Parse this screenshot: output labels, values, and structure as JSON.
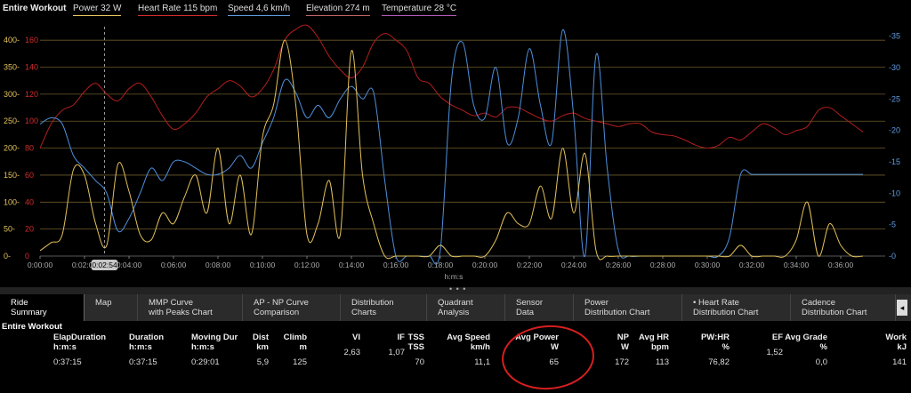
{
  "legend": {
    "title": "Entire Workout",
    "items": [
      {
        "label": "Power  32 W",
        "color": "#e8c760"
      },
      {
        "label": "Heart Rate  115 bpm",
        "color": "#d22c2c"
      },
      {
        "label": "Speed  4,6 km/h",
        "color": "#5f9be0"
      },
      {
        "label": "Elevation  274 m",
        "color": "#c06464"
      },
      {
        "label": "Temperature  28 °C",
        "color": "#b35ab8"
      }
    ]
  },
  "chart_data": {
    "type": "line",
    "xlabel": "h:m:s",
    "cursor_label": "0:02:54",
    "x_ticks": [
      "0:00:00",
      "0:02:00",
      "0:04:00",
      "0:06:00",
      "0:08:00",
      "0:10:00",
      "0:12:00",
      "0:14:00",
      "0:16:00",
      "0:18:00",
      "0:20:00",
      "0:22:00",
      "0:24:00",
      "0:26:00",
      "0:28:00",
      "0:30:00",
      "0:32:00",
      "0:34:00",
      "0:36:00"
    ],
    "y_power_ticks": [
      "0-",
      "50-",
      "100-",
      "150-",
      "200-",
      "250-",
      "300-",
      "350-",
      "400-"
    ],
    "y_hr_ticks": [
      "0",
      "20",
      "40",
      "60",
      "80",
      "100",
      "120",
      "140",
      "160"
    ],
    "y_speed_ticks": [
      "-0",
      "-5",
      "-10",
      "-15",
      "-20",
      "-25",
      "-30",
      "-35"
    ],
    "x_unit": "minutes",
    "series": [
      {
        "name": "Heart Rate",
        "axis": "hr",
        "color": "#b41e1e",
        "x": [
          0,
          0.5,
          1,
          1.5,
          2,
          2.5,
          3,
          3.5,
          4,
          4.5,
          5,
          5.5,
          6,
          6.5,
          7,
          7.5,
          8,
          8.5,
          9,
          9.5,
          10,
          10.5,
          11,
          11.5,
          12,
          12.5,
          13,
          13.5,
          14,
          14.5,
          15,
          15.5,
          16,
          16.5,
          17,
          17.5,
          18,
          18.5,
          19,
          19.5,
          20,
          20.5,
          21,
          21.5,
          22,
          22.5,
          23,
          23.5,
          24,
          24.5,
          25,
          25.5,
          26,
          26.5,
          27,
          27.5,
          28,
          28.5,
          29,
          29.5,
          30,
          30.5,
          31,
          31.5,
          32,
          32.5,
          33,
          33.5,
          34,
          34.5,
          35,
          35.5,
          36,
          36.5,
          37
        ],
        "y": [
          80,
          98,
          108,
          112,
          122,
          128,
          120,
          115,
          124,
          128,
          118,
          104,
          94,
          98,
          106,
          118,
          124,
          130,
          126,
          118,
          124,
          138,
          160,
          168,
          171,
          162,
          148,
          138,
          132,
          140,
          158,
          165,
          160,
          152,
          132,
          128,
          118,
          112,
          108,
          104,
          106,
          103,
          110,
          110,
          106,
          102,
          100,
          104,
          106,
          102,
          100,
          98,
          96,
          98,
          98,
          92,
          90,
          89,
          86,
          82,
          80,
          82,
          88,
          86,
          92,
          98,
          95,
          90,
          93,
          96,
          108,
          110,
          104,
          98,
          92
        ]
      },
      {
        "name": "Speed",
        "axis": "speed",
        "color": "#4f8fdc",
        "x": [
          0,
          0.5,
          1,
          1.5,
          2,
          2.5,
          3,
          3.5,
          4,
          4.5,
          5,
          5.5,
          6,
          6.5,
          7,
          7.5,
          8,
          8.5,
          9,
          9.5,
          10,
          10.5,
          11,
          11.5,
          12,
          12.5,
          13,
          13.5,
          14,
          14.5,
          15,
          15.5,
          16,
          16.5,
          17,
          17.5,
          18,
          18.5,
          19,
          19.5,
          20,
          20.5,
          21,
          21.5,
          22,
          22.5,
          23,
          23.5,
          24,
          24.5,
          25,
          25.5,
          26,
          26.5,
          27,
          27.5,
          28,
          28.5,
          29,
          29.5,
          30,
          30.5,
          31,
          31.5,
          32,
          32.5,
          33,
          33.5,
          34,
          34.5,
          35,
          35.5,
          36,
          36.5,
          37
        ],
        "y": [
          21,
          22,
          21,
          16,
          14,
          12,
          10,
          4,
          6,
          10,
          14,
          12,
          15,
          15,
          14,
          13,
          13,
          14,
          16,
          14,
          18,
          22,
          28,
          26,
          22,
          24,
          22,
          25,
          27,
          25,
          26,
          12,
          0,
          0,
          0,
          0,
          1,
          28,
          34,
          24,
          22,
          30,
          18,
          22,
          33,
          24,
          18,
          36,
          22,
          0,
          32,
          14,
          1,
          0,
          0,
          0,
          0,
          0,
          0,
          0,
          0,
          0,
          3,
          13,
          13,
          13,
          13,
          13,
          13,
          13,
          13,
          13,
          13,
          13,
          13
        ]
      },
      {
        "name": "Power",
        "axis": "power",
        "color": "#e3c25a",
        "x": [
          0,
          0.5,
          1,
          1.5,
          2,
          2.5,
          3,
          3.5,
          4,
          4.5,
          5,
          5.5,
          6,
          6.5,
          7,
          7.5,
          8,
          8.5,
          9,
          9.5,
          10,
          10.5,
          11,
          11.5,
          12,
          12.5,
          13,
          13.5,
          14,
          14.5,
          15,
          15.5,
          16,
          16.5,
          17,
          17.5,
          18,
          18.5,
          19,
          19.5,
          20,
          20.5,
          21,
          21.5,
          22,
          22.5,
          23,
          23.5,
          24,
          24.5,
          25,
          25.5,
          26,
          26.5,
          27,
          27.5,
          28,
          28.5,
          29,
          29.5,
          30,
          30.5,
          31,
          31.5,
          32,
          32.5,
          33,
          33.5,
          34,
          34.5,
          35,
          35.5,
          36,
          36.5,
          37
        ],
        "y": [
          10,
          25,
          40,
          160,
          150,
          60,
          20,
          170,
          120,
          40,
          30,
          80,
          60,
          110,
          150,
          80,
          200,
          60,
          150,
          40,
          220,
          280,
          400,
          280,
          40,
          60,
          140,
          40,
          380,
          150,
          60,
          0,
          0,
          0,
          0,
          0,
          20,
          0,
          0,
          0,
          0,
          30,
          80,
          60,
          60,
          130,
          70,
          200,
          80,
          190,
          10,
          0,
          0,
          0,
          0,
          0,
          0,
          0,
          0,
          0,
          0,
          0,
          0,
          20,
          0,
          0,
          0,
          0,
          30,
          100,
          0,
          60,
          20,
          0,
          0
        ]
      }
    ]
  },
  "tabs": [
    {
      "label": "Ride\nSummary",
      "active": true
    },
    {
      "label": "Map"
    },
    {
      "label": "MMP Curve\nwith Peaks Chart"
    },
    {
      "label": "AP - NP Curve\nComparison"
    },
    {
      "label": "Distribution\nCharts"
    },
    {
      "label": "Quadrant\nAnalysis"
    },
    {
      "label": "Sensor\nData"
    },
    {
      "label": "Power\nDistribution Chart"
    },
    {
      "label": "• Heart Rate\nDistribution Chart"
    },
    {
      "label": "Cadence\nDistribution Chart"
    }
  ],
  "summary": {
    "title": "Entire Workout",
    "columns": [
      {
        "h1": "ElapDuration",
        "h2": "h:m:s",
        "value": "0:37:15"
      },
      {
        "h1": "Duration",
        "h2": "h:m:s",
        "value": "0:37:15"
      },
      {
        "h1": "Moving Dur",
        "h2": "h:m:s",
        "value": "0:29:01"
      },
      {
        "h1": "Dist",
        "h2": "km",
        "value": "5,9"
      },
      {
        "h1": "Climb",
        "h2": "m",
        "value": "125"
      },
      {
        "h1": "VI",
        "h2": "",
        "value": "2,63"
      },
      {
        "h1": "IF",
        "h2": "",
        "value": "1,07"
      },
      {
        "h1": "TSS",
        "h2": "TSS",
        "value": "70"
      },
      {
        "h1": "Avg Speed",
        "h2": "km/h",
        "value": "11,1"
      },
      {
        "h1": "Avg Power",
        "h2": "W",
        "value": "65"
      },
      {
        "h1": "NP",
        "h2": "W",
        "value": "172"
      },
      {
        "h1": "Avg HR",
        "h2": "bpm",
        "value": "113"
      },
      {
        "h1": "PW:HR",
        "h2": "%",
        "value": "76,82"
      },
      {
        "h1": "EF",
        "h2": "",
        "value": "1,52"
      },
      {
        "h1": "Avg Grade",
        "h2": "%",
        "value": "0,0"
      },
      {
        "h1": "Work",
        "h2": "kJ",
        "value": "141"
      }
    ]
  },
  "splitter": {
    "dots": "• • •"
  },
  "scroll": {
    "glyph": "◂"
  }
}
